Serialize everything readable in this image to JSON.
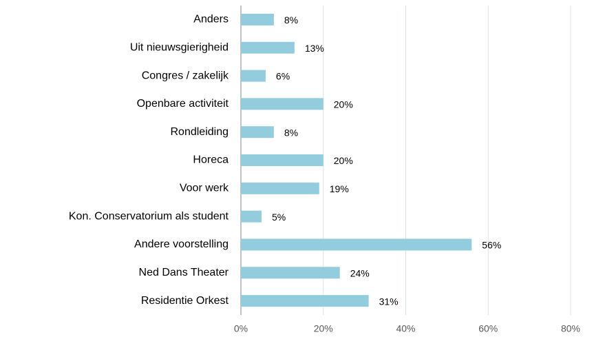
{
  "chart_data": {
    "type": "bar",
    "orientation": "horizontal",
    "categories": [
      "Anders",
      "Uit nieuwsgierigheid",
      "Congres / zakelijk",
      "Openbare activiteit",
      "Rondleiding",
      "Horeca",
      "Voor werk",
      "Kon. Conservatorium als student",
      "Andere voorstelling",
      "Ned Dans Theater",
      "Residentie Orkest"
    ],
    "values": [
      8,
      13,
      6,
      20,
      8,
      20,
      19,
      5,
      56,
      24,
      31
    ],
    "value_labels": [
      "8%",
      "13%",
      "6%",
      "20%",
      "8%",
      "20%",
      "19%",
      "5%",
      "56%",
      "24%",
      "31%"
    ],
    "color": "#93cddd",
    "xlim": [
      0,
      80
    ],
    "xticks": [
      {
        "value": 0,
        "label": "0%"
      },
      {
        "value": 20,
        "label": "20%"
      },
      {
        "value": 40,
        "label": "40%"
      },
      {
        "value": 60,
        "label": "60%"
      },
      {
        "value": 80,
        "label": "80%"
      }
    ],
    "grid": true
  }
}
